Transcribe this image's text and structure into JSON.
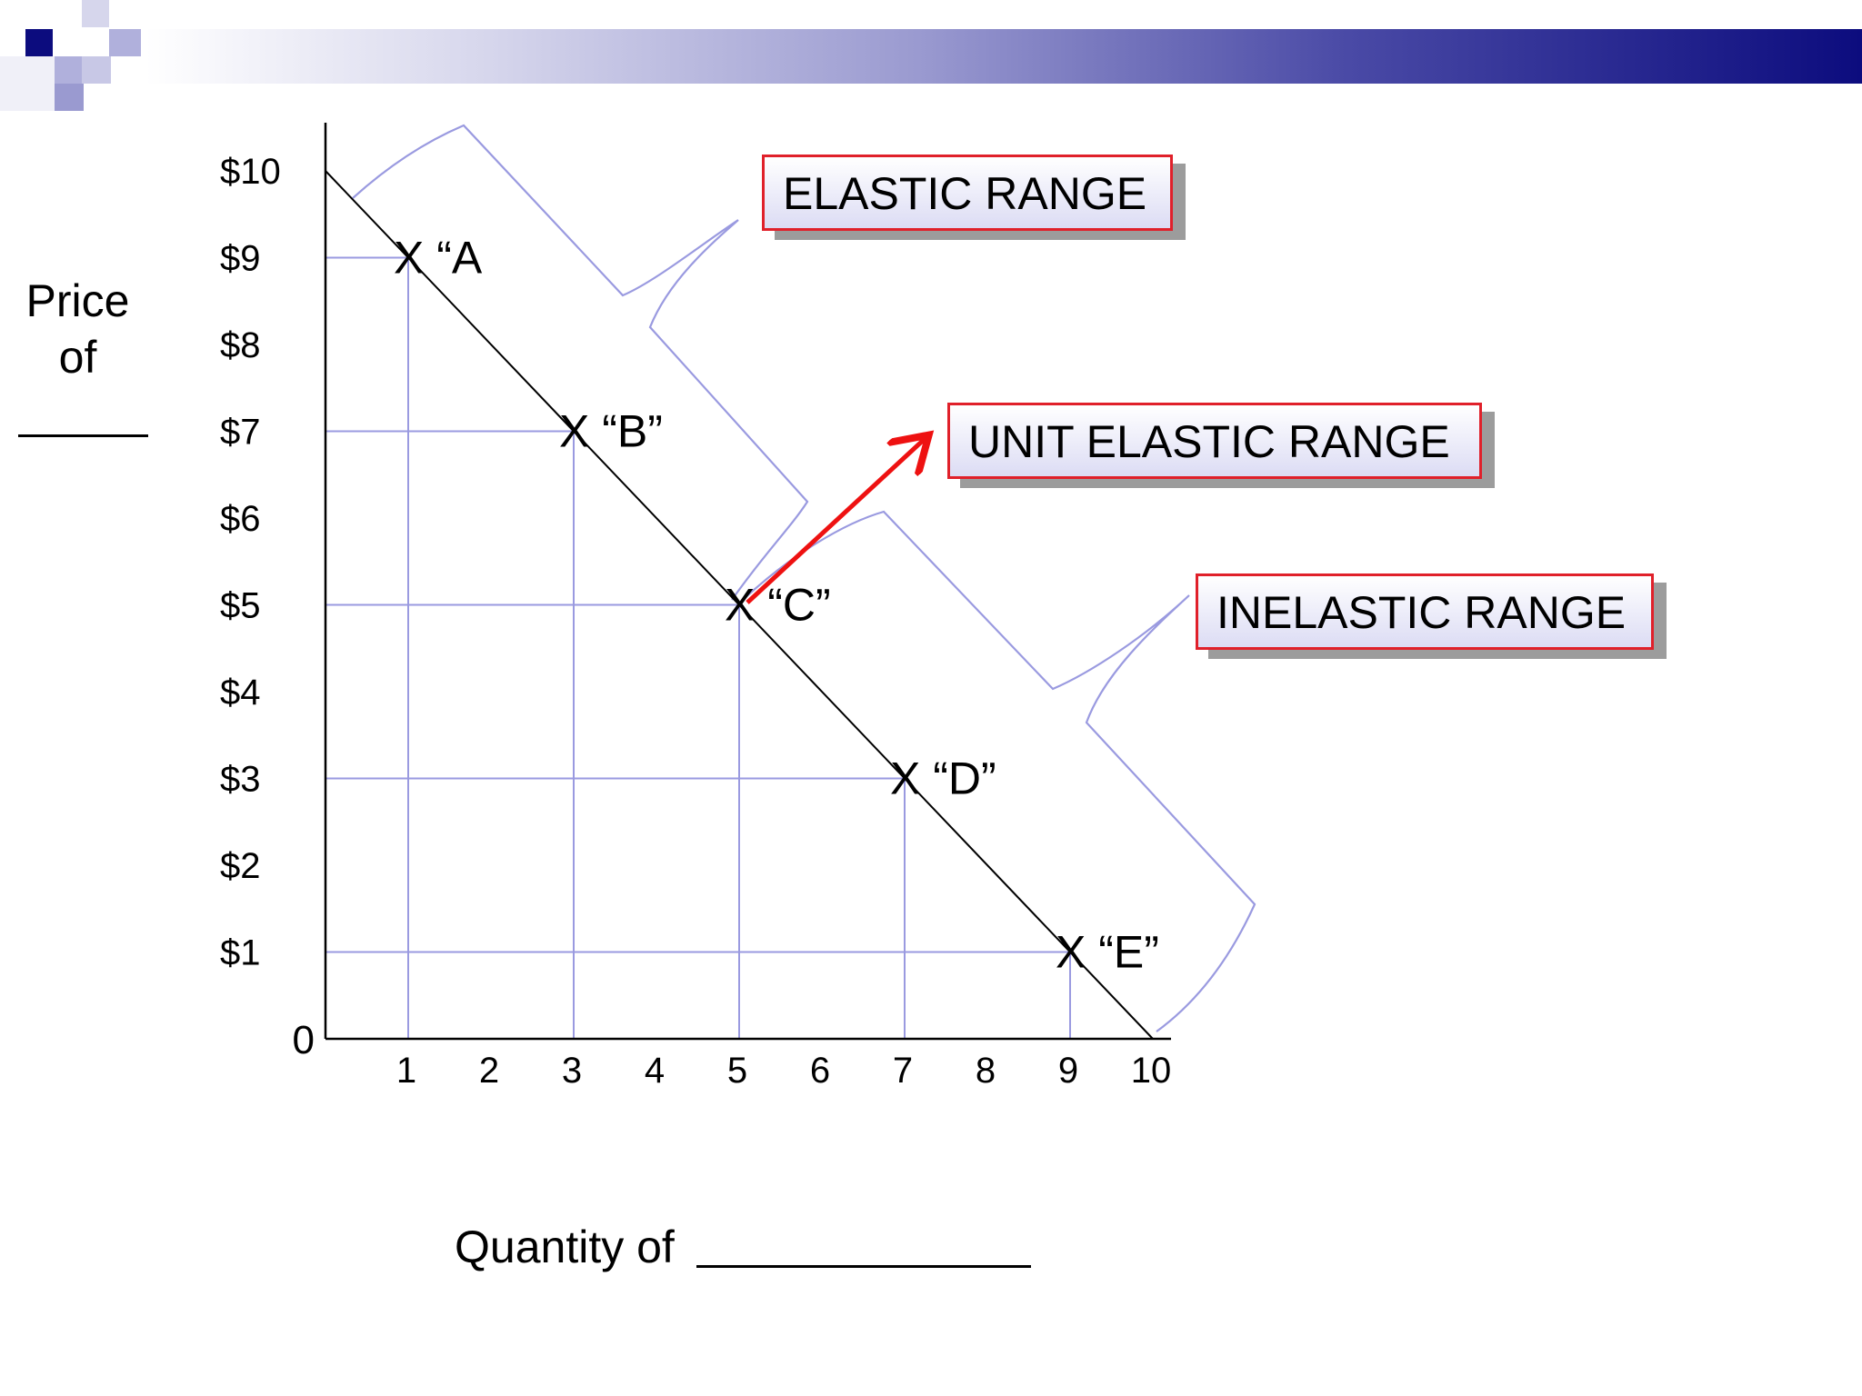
{
  "header": {
    "accent_colors": [
      "#0c0c7e",
      "#9a9ad0",
      "#d6d6ec"
    ]
  },
  "chart_data": {
    "type": "line",
    "title": "",
    "ylabel": "Price of",
    "xlabel": "Quantity of",
    "y_ticks": [
      "$10",
      "$9",
      "$8",
      "$7",
      "$6",
      "$5",
      "$4",
      "$3",
      "$2",
      "$1"
    ],
    "y_tick_values": [
      10,
      9,
      8,
      7,
      6,
      5,
      4,
      3,
      2,
      1
    ],
    "x_ticks": [
      "1",
      "2",
      "3",
      "4",
      "5",
      "6",
      "7",
      "8",
      "9",
      "10"
    ],
    "x_tick_values": [
      1,
      2,
      3,
      4,
      5,
      6,
      7,
      8,
      9,
      10
    ],
    "origin_label": "0",
    "xlim": [
      0,
      10
    ],
    "ylim": [
      0,
      10
    ],
    "demand_line": {
      "x": [
        0,
        10
      ],
      "y": [
        10,
        0
      ]
    },
    "points": [
      {
        "label": "X “A",
        "x": 1,
        "y": 9
      },
      {
        "label": "X “B”",
        "x": 3,
        "y": 7
      },
      {
        "label": "X “C”",
        "x": 5,
        "y": 5
      },
      {
        "label": "X “D”",
        "x": 7,
        "y": 3
      },
      {
        "label": "X “E”",
        "x": 9,
        "y": 1
      }
    ],
    "ranges": {
      "elastic": "ELASTIC RANGE",
      "unit": "UNIT ELASTIC RANGE",
      "inelastic": "INELASTIC RANGE"
    },
    "colors": {
      "guide": "#9a9ae0",
      "brace": "#9a9ae0",
      "arrow": "#ee1111",
      "box_border": "#e0202a"
    },
    "grid": false,
    "legend": "none"
  }
}
